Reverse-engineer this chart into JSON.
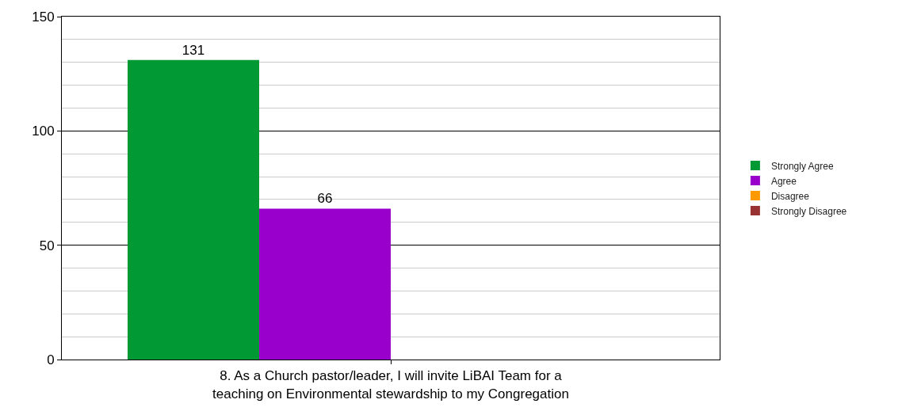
{
  "chart_data": {
    "type": "bar",
    "categories": [
      "8. As a Church pastor/leader, I will invite LiBAI Team for a\nteaching on Environmental stewardship to my Congregation"
    ],
    "series": [
      {
        "name": "Strongly Agree",
        "color": "#009933",
        "values": [
          131
        ],
        "value_labels": [
          "131"
        ]
      },
      {
        "name": "Agree",
        "color": "#9900cc",
        "values": [
          66
        ],
        "value_labels": [
          "66"
        ]
      },
      {
        "name": "Disagree",
        "color": "#ff9900",
        "values": [
          0
        ],
        "value_labels": [
          null
        ]
      },
      {
        "name": "Strongly Disagree",
        "color": "#993333",
        "values": [
          0
        ],
        "value_labels": [
          null
        ]
      }
    ],
    "ylim": [
      0,
      150
    ],
    "yticks": [
      0,
      {
        "value": 10,
        "label": null
      },
      {
        "value": 20,
        "label": null
      },
      {
        "value": 30,
        "label": null
      },
      {
        "value": 40,
        "label": null
      },
      50,
      {
        "value": 60,
        "label": null
      },
      {
        "value": 70,
        "label": null
      },
      {
        "value": 80,
        "label": null
      },
      {
        "value": 90,
        "label": null
      },
      100,
      {
        "value": 110,
        "label": null
      },
      {
        "value": 120,
        "label": null
      },
      {
        "value": 130,
        "label": null
      },
      {
        "value": 140,
        "label": null
      },
      150
    ],
    "grid": true,
    "legend": "right"
  }
}
